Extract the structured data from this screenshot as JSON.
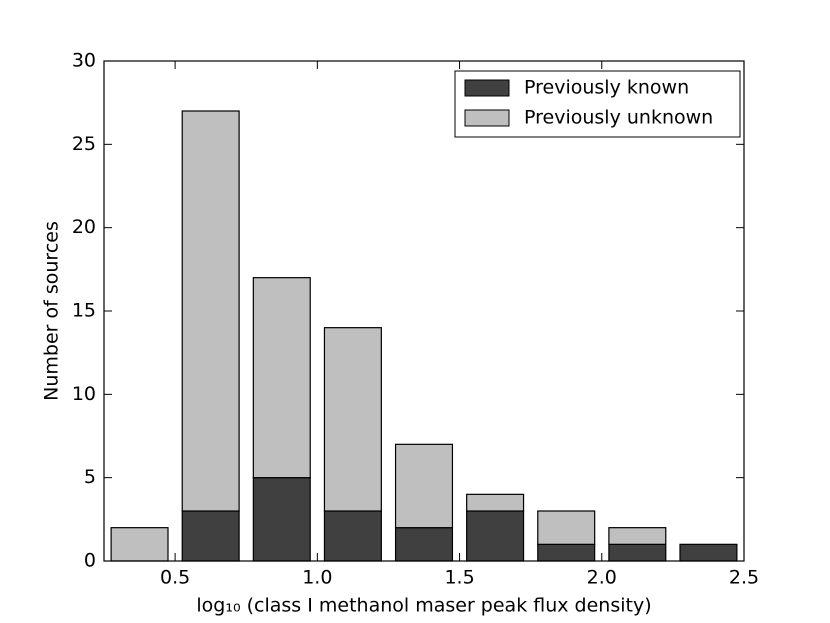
{
  "chart_data": {
    "type": "histogram",
    "xlabel": "log₁₀ (class I methanol maser peak flux density)",
    "ylabel": "Number of sources",
    "bins": [
      0.25,
      0.5,
      0.75,
      1.0,
      1.25,
      1.5,
      1.75,
      2.0,
      2.25,
      2.5
    ],
    "series": [
      {
        "name": "Previously known",
        "color": "#404040",
        "values": [
          0,
          3,
          5,
          3,
          2,
          3,
          1,
          1,
          1
        ]
      },
      {
        "name": "Previously unknown",
        "color": "#bfbfbf",
        "values": [
          2,
          24,
          12,
          11,
          5,
          1,
          2,
          1,
          0
        ]
      }
    ],
    "stacked": true,
    "xlim": [
      0.25,
      2.5
    ],
    "ylim": [
      0,
      30
    ],
    "xticks": [
      0.5,
      {
        "value": 1.0,
        "label": "1.0"
      },
      1.5,
      {
        "value": 2.0,
        "label": "2.0"
      },
      2.5
    ],
    "yticks": [
      0,
      5,
      10,
      15,
      20,
      25,
      30
    ],
    "legend": "upper right"
  }
}
